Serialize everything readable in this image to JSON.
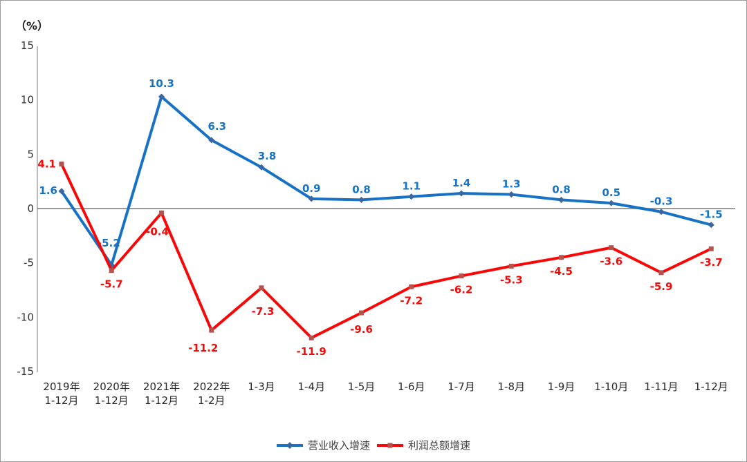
{
  "page": {
    "background": "#ffffff",
    "border_color": "#9a9a9a",
    "zero_line_color": "#8c8c8c",
    "axis_line_color": "#a6a6a6",
    "tick_text_color": "#333333",
    "legend_text_color": "#404040"
  },
  "chart_data": {
    "type": "line",
    "unit_label": "（%）",
    "categories": [
      "2019年\n1-12月",
      "2020年\n1-12月",
      "2021年\n1-12月",
      "2022年\n1-2月",
      "1-3月",
      "1-4月",
      "1-5月",
      "1-6月",
      "1-7月",
      "1-8月",
      "1-9月",
      "1-10月",
      "1-11月",
      "1-12月"
    ],
    "series": [
      {
        "name": "营业收入增速",
        "color": "#1772c5",
        "marker": "diamond",
        "marker_color": "#3a66a3",
        "label_color": "#1772c5",
        "values": [
          1.6,
          -5.2,
          10.3,
          6.3,
          3.8,
          0.9,
          0.8,
          1.1,
          1.4,
          1.3,
          0.8,
          0.5,
          -0.3,
          -1.5
        ]
      },
      {
        "name": "利润总额增速",
        "color": "#fb0606",
        "marker": "square",
        "marker_color": "#b2534e",
        "label_color": "#f50909",
        "values": [
          4.1,
          -5.7,
          -0.4,
          -11.2,
          -7.3,
          -11.9,
          -9.6,
          -7.2,
          -6.2,
          -5.3,
          -4.5,
          -3.6,
          -5.9,
          -3.7
        ]
      }
    ],
    "ylim": [
      -15,
      15
    ],
    "yticks": [
      15,
      10,
      5,
      0,
      -5,
      -10,
      -15
    ],
    "grid": "zero-line-only",
    "legend_position": "bottom-center"
  }
}
